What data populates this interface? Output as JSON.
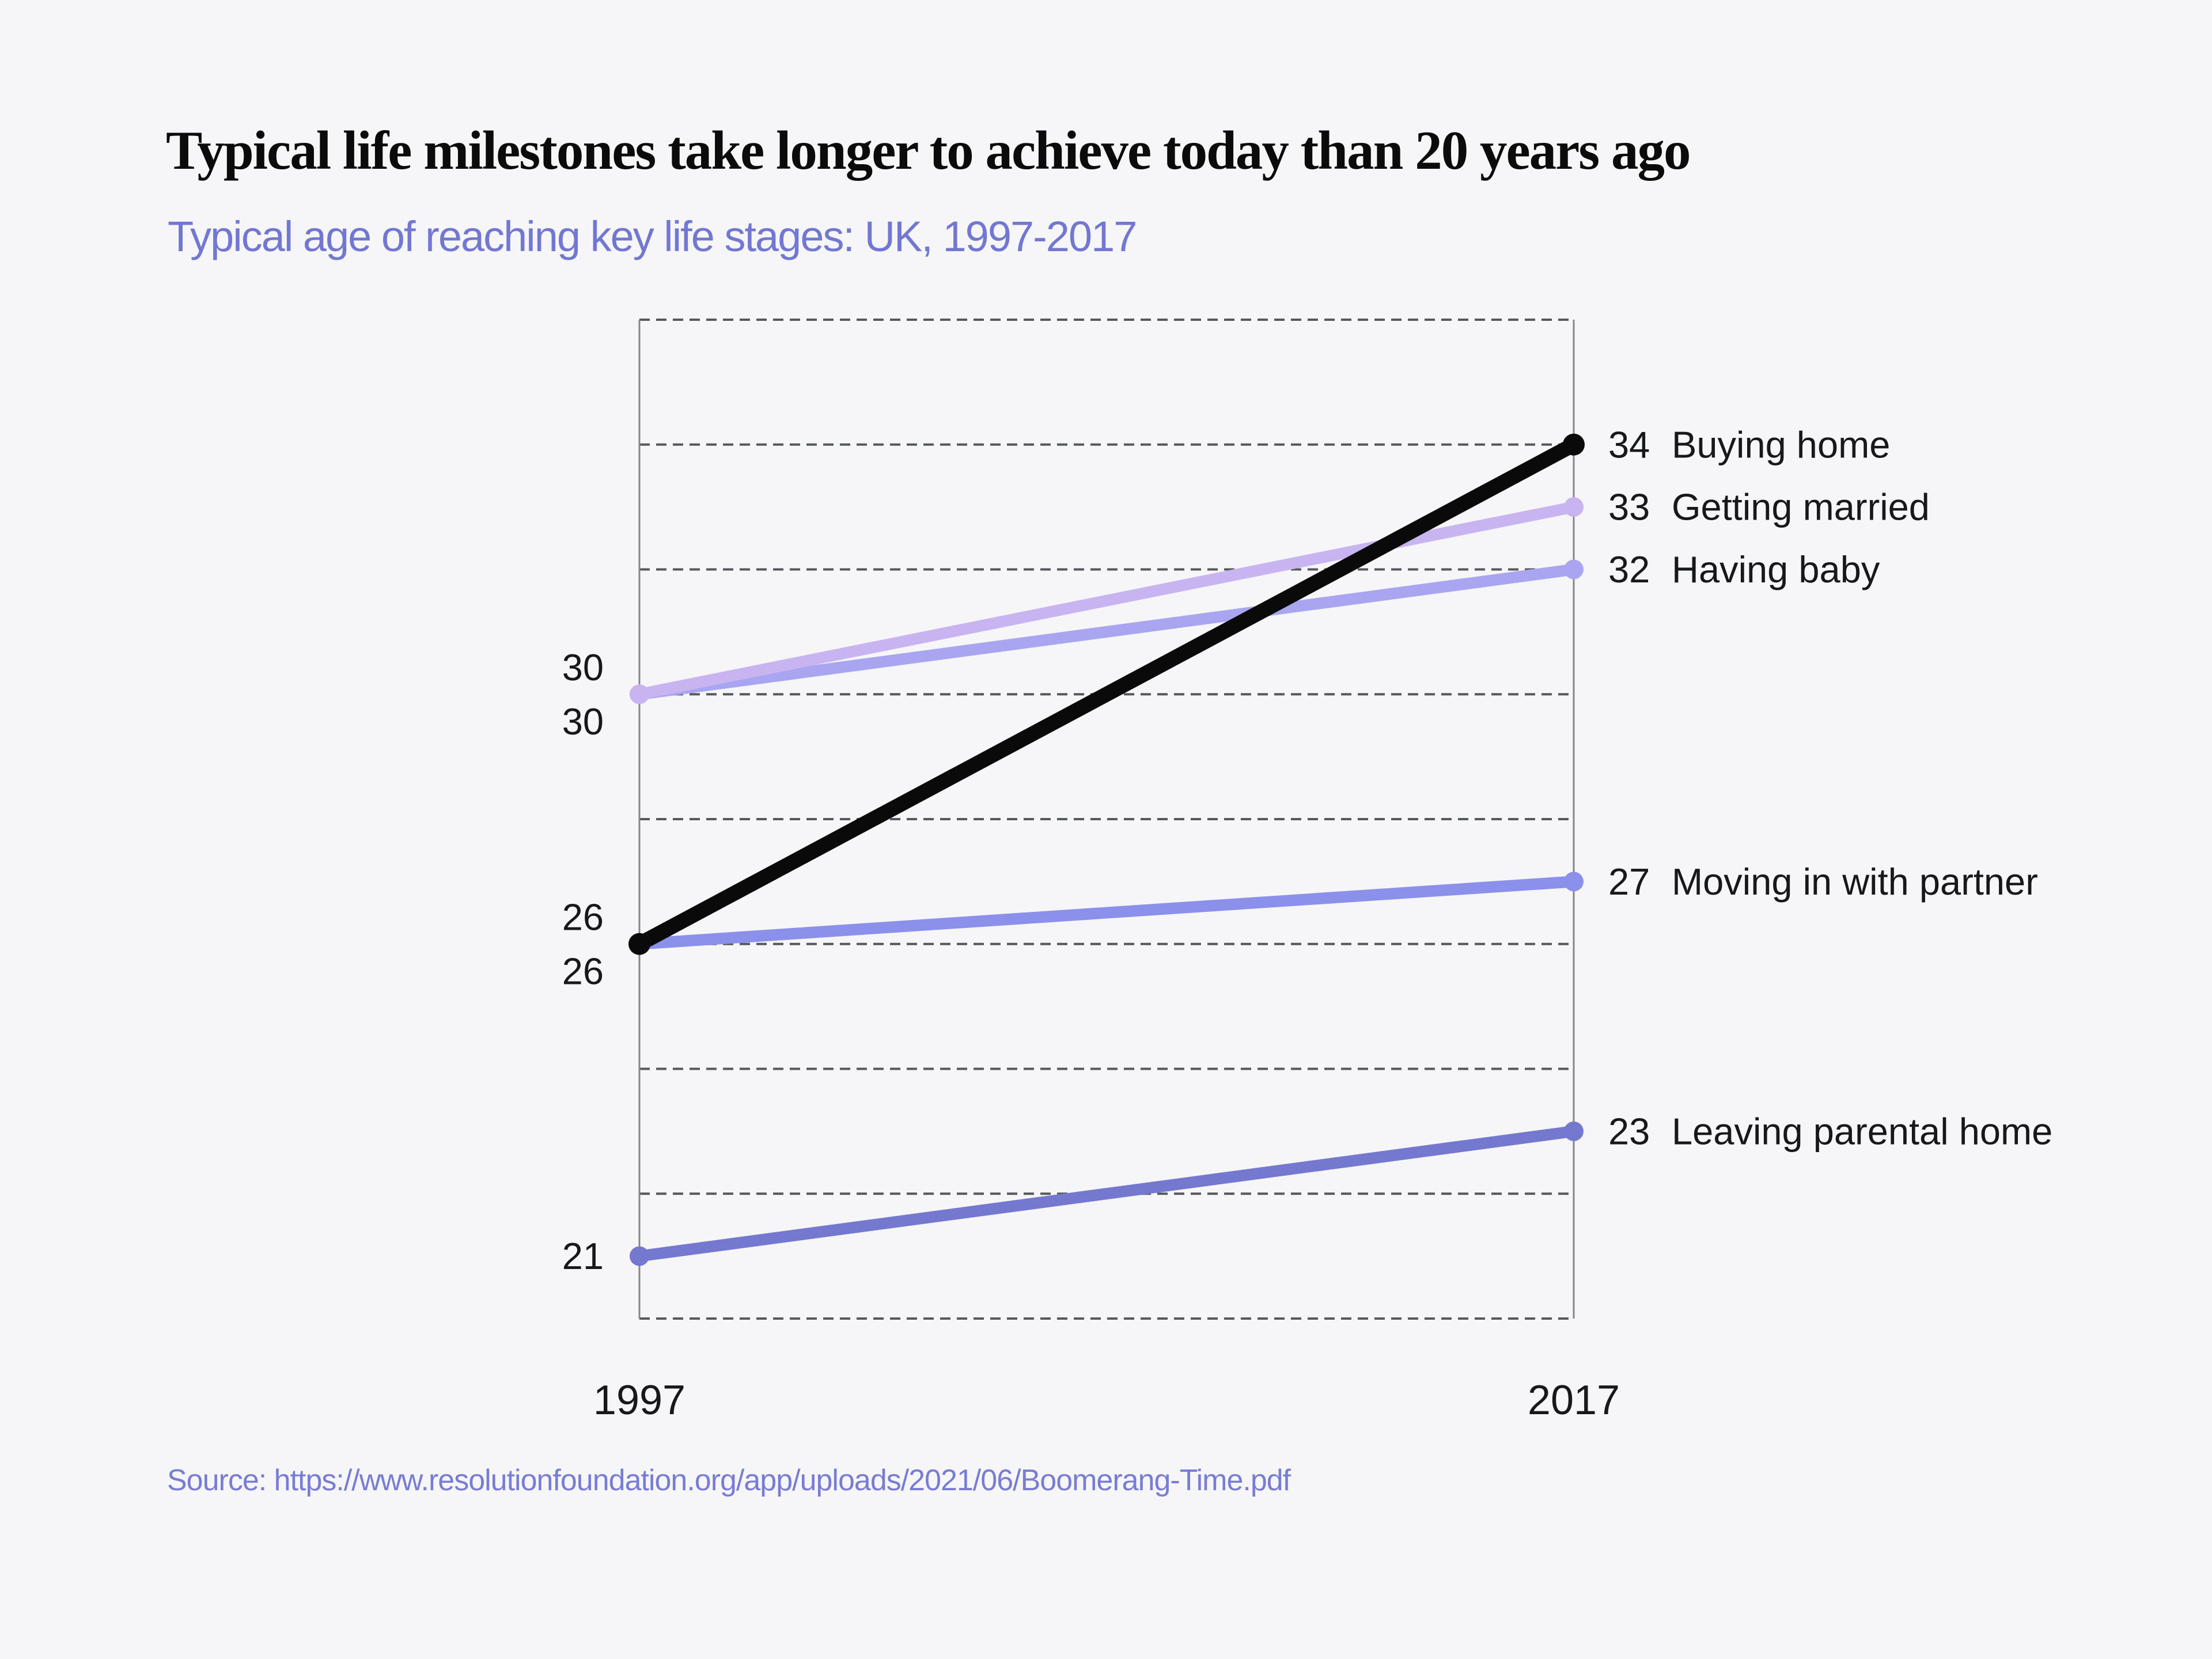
{
  "page": {
    "background_color": "#f6f6f8"
  },
  "header": {
    "title": "Typical life milestones take longer to achieve today than 20 years ago",
    "subtitle": "Typical age of reaching key life stages: UK, 1997-2017"
  },
  "footer": {
    "source": "Source: https://www.resolutionfoundation.org/app/uploads/2021/06/Boomerang-Time.pdf"
  },
  "chart_data": {
    "type": "line",
    "variant": "slope",
    "title": "Typical life milestones take longer to achieve today than 20 years ago",
    "subtitle": "Typical age of reaching key life stages: UK, 1997-2017",
    "x_labels": [
      "1997",
      "2017"
    ],
    "x": [
      1997,
      2017
    ],
    "ylim": [
      20,
      36
    ],
    "gridline_interval": 2,
    "grid": "horizontal-dashed",
    "legend_position": "inline-right-labels",
    "value_labels": "both-ends",
    "series": [
      {
        "name": "Buying home",
        "values": [
          26,
          34
        ],
        "color": "#0a0a0a"
      },
      {
        "name": "Getting married",
        "values": [
          30,
          33
        ],
        "color": "#c9b4f2"
      },
      {
        "name": "Having baby",
        "values": [
          30,
          32
        ],
        "color": "#a8a6f0"
      },
      {
        "name": "Moving in with partner",
        "values": [
          26,
          27
        ],
        "color": "#8b90ea"
      },
      {
        "name": "Leaving parental home",
        "values": [
          21,
          23
        ],
        "color": "#7478cf"
      }
    ],
    "colors": {
      "gridline": "#55585c",
      "axis_border": "#85868a",
      "label_text": "#17181a",
      "accent_purple": "#7277d1"
    }
  }
}
